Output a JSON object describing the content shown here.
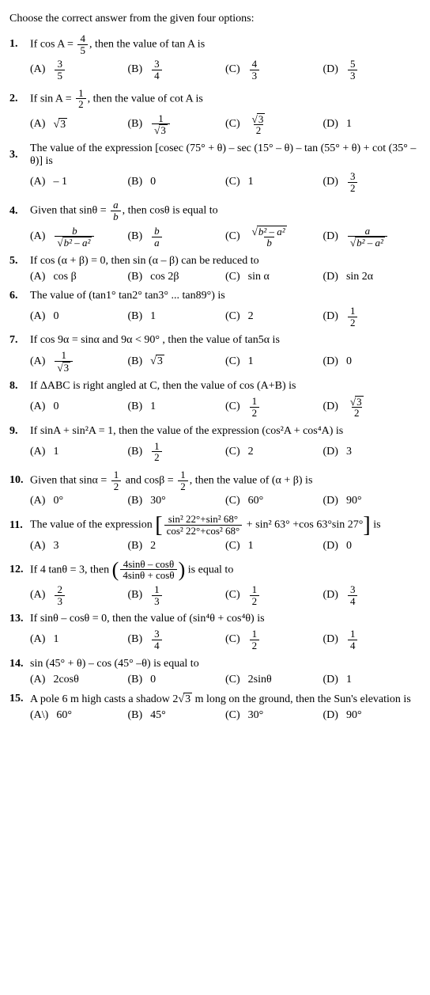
{
  "header": "Choose the correct answer from the given four options:",
  "questions": [
    {
      "num": "1.",
      "stem_pre": "If cos A = ",
      "stem_frac": {
        "num": "4",
        "den": "5"
      },
      "stem_post": ", then the value of tan A is",
      "opts": [
        {
          "label": "(A)",
          "frac": {
            "num": "3",
            "den": "5"
          }
        },
        {
          "label": "(B)",
          "frac": {
            "num": "3",
            "den": "4"
          }
        },
        {
          "label": "(C)",
          "frac": {
            "num": "4",
            "den": "3"
          }
        },
        {
          "label": "(D)",
          "frac": {
            "num": "5",
            "den": "3"
          }
        }
      ]
    },
    {
      "num": "2.",
      "stem_pre": "If sin A = ",
      "stem_frac": {
        "num": "1",
        "den": "2"
      },
      "stem_post": ", then the value of cot A is",
      "opts": [
        {
          "label": "(A)",
          "sqrt": "3"
        },
        {
          "label": "(B)",
          "frac": {
            "num": "1",
            "den_sqrt": "3"
          }
        },
        {
          "label": "(C)",
          "frac": {
            "num_sqrt": "3",
            "den": "2"
          }
        },
        {
          "label": "(D)",
          "text": "1"
        }
      ]
    },
    {
      "num": "3.",
      "stem": "The value of the expression [cosec (75° + θ) – sec (15° – θ) – tan (55° + θ) + cot (35° – θ)] is",
      "opts": [
        {
          "label": "(A)",
          "text": "– 1"
        },
        {
          "label": "(B)",
          "text": "0"
        },
        {
          "label": "(C)",
          "text": "1"
        },
        {
          "label": "(D)",
          "frac": {
            "num": "3",
            "den": "2"
          }
        }
      ]
    },
    {
      "num": "4.",
      "stem_pre": "Given that sinθ = ",
      "stem_frac_it": {
        "num": "a",
        "den": "b"
      },
      "stem_post": ", then cosθ is equal to",
      "opts": [
        {
          "label": "(A)",
          "frac": {
            "num_it": "b",
            "den_sqrt_expr": "b² – a²"
          }
        },
        {
          "label": "(B)",
          "frac": {
            "num_it": "b",
            "den_it": "a"
          }
        },
        {
          "label": "(C)",
          "frac": {
            "num_sqrt_expr": "b² – a²",
            "den_it": "b"
          }
        },
        {
          "label": "(D)",
          "frac": {
            "num_it": "a",
            "den_sqrt_expr": "b² – a²"
          }
        }
      ]
    },
    {
      "num": "5.",
      "stem": "If cos (α + β) = 0, then sin (α – β) can be reduced to",
      "opts": [
        {
          "label": "(A)",
          "text": "cos β"
        },
        {
          "label": "(B)",
          "text": "cos 2β"
        },
        {
          "label": "(C)",
          "text": "sin α"
        },
        {
          "label": "(D)",
          "text": "sin 2α"
        }
      ]
    },
    {
      "num": "6.",
      "stem": "The value of (tan1° tan2° tan3° ... tan89°) is",
      "opts": [
        {
          "label": "(A)",
          "text": "0"
        },
        {
          "label": "(B)",
          "text": "1"
        },
        {
          "label": "(C)",
          "text": "2"
        },
        {
          "label": "(D)",
          "frac": {
            "num": "1",
            "den": "2"
          }
        }
      ]
    },
    {
      "num": "7.",
      "stem": "If cos 9α = sinα and 9α < 90° , then the value of tan5α is",
      "opts": [
        {
          "label": "(A)",
          "frac": {
            "num": "1",
            "den_sqrt": "3"
          }
        },
        {
          "label": "(B)",
          "sqrt": "3"
        },
        {
          "label": "(C)",
          "text": "1"
        },
        {
          "label": "(D)",
          "text": "0"
        }
      ]
    },
    {
      "num": "8.",
      "stem": "If ΔABC is right angled at C, then the value of cos (A+B) is",
      "opts": [
        {
          "label": "(A)",
          "text": "0"
        },
        {
          "label": "(B)",
          "text": "1"
        },
        {
          "label": "(C)",
          "frac": {
            "num": "1",
            "den": "2"
          }
        },
        {
          "label": "(D)",
          "frac": {
            "num_sqrt": "3",
            "den": "2"
          }
        }
      ]
    },
    {
      "num": "9.",
      "stem": "If sinA + sin²A = 1, then the value of the expression (cos²A + cos⁴A) is",
      "opts": [
        {
          "label": "(A)",
          "text": "1"
        },
        {
          "label": "(B)",
          "frac": {
            "num": "1",
            "den": "2"
          }
        },
        {
          "label": "(C)",
          "text": "2"
        },
        {
          "label": "(D)",
          "text": "3"
        }
      ]
    },
    {
      "num": "10.",
      "stem_pre": "Given that sinα = ",
      "stem_frac": {
        "num": "1",
        "den": "2"
      },
      "stem_mid": " and cosβ = ",
      "stem_frac2": {
        "num": "1",
        "den": "2"
      },
      "stem_post": ", then the value of (α + β) is",
      "opts": [
        {
          "label": "(A)",
          "text": "0°"
        },
        {
          "label": "(B)",
          "text": "30°"
        },
        {
          "label": "(C)",
          "text": "60°"
        },
        {
          "label": "(D)",
          "text": "90°"
        }
      ]
    },
    {
      "num": "11.",
      "stem_pre": "The value of the expression ",
      "big_frac": {
        "num": "sin² 22°+sin² 68°",
        "den": "cos² 22°+cos² 68°"
      },
      "big_post": " + sin² 63° +cos 63°sin 27°",
      "stem_post": " is",
      "opts": [
        {
          "label": "(A)",
          "text": "3"
        },
        {
          "label": "(B)",
          "text": "2"
        },
        {
          "label": "(C)",
          "text": "1"
        },
        {
          "label": "(D)",
          "text": "0"
        }
      ]
    },
    {
      "num": "12.",
      "stem_pre": "If 4 tanθ = 3, then ",
      "paren_frac": {
        "num": "4sinθ – cosθ",
        "den": "4sinθ + cosθ"
      },
      "stem_post": " is equal to",
      "opts": [
        {
          "label": "(A)",
          "frac": {
            "num": "2",
            "den": "3"
          }
        },
        {
          "label": "(B)",
          "frac": {
            "num": "1",
            "den": "3"
          }
        },
        {
          "label": "(C)",
          "frac": {
            "num": "1",
            "den": "2"
          }
        },
        {
          "label": "(D)",
          "frac": {
            "num": "3",
            "den": "4"
          }
        }
      ]
    },
    {
      "num": "13.",
      "stem": "If sinθ – cosθ = 0, then the value of (sin⁴θ + cos⁴θ) is",
      "opts": [
        {
          "label": "(A)",
          "text": "1"
        },
        {
          "label": "(B)",
          "frac": {
            "num": "3",
            "den": "4"
          }
        },
        {
          "label": "(C)",
          "frac": {
            "num": "1",
            "den": "2"
          }
        },
        {
          "label": "(D)",
          "frac": {
            "num": "1",
            "den": "4"
          }
        }
      ]
    },
    {
      "num": "14.",
      "stem": "sin (45° + θ) – cos (45° –θ) is equal to",
      "opts": [
        {
          "label": "(A)",
          "text": "2cosθ"
        },
        {
          "label": "(B)",
          "text": "0"
        },
        {
          "label": "(C)",
          "text": "2sinθ"
        },
        {
          "label": "(D)",
          "text": "1"
        }
      ]
    },
    {
      "num": "15.",
      "stem_pre": "A pole 6 m high casts a shadow 2",
      "inline_sqrt": "3",
      "stem_post": " m long on the ground, then the Sun's elevation is",
      "opts": [
        {
          "label": "(A\\)",
          "text": "60°"
        },
        {
          "label": "(B)",
          "text": "45°"
        },
        {
          "label": "(C)",
          "text": "30°"
        },
        {
          "label": "(D)",
          "text": "90°"
        }
      ]
    }
  ]
}
